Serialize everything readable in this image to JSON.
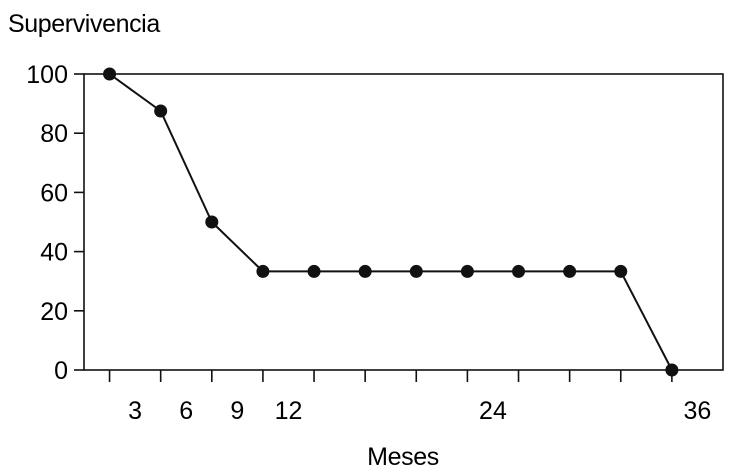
{
  "chart_data": {
    "type": "line",
    "title": "",
    "ylabel": "Supervivencia",
    "xlabel": "Meses",
    "ylim": [
      0,
      100
    ],
    "xlim": [
      0,
      37.5
    ],
    "y_ticks": [
      0,
      20,
      40,
      60,
      80,
      100
    ],
    "x_minor_ticks": [
      1.5,
      4.5,
      7.5,
      10.5,
      13.5,
      16.5,
      19.5,
      22.5,
      25.5,
      28.5,
      31.5,
      34.5
    ],
    "x_tick_labels": [
      {
        "value": 3,
        "label": "3"
      },
      {
        "value": 6,
        "label": "6"
      },
      {
        "value": 9,
        "label": "9"
      },
      {
        "value": 12,
        "label": "12"
      },
      {
        "value": 24,
        "label": "24"
      },
      {
        "value": 36,
        "label": "36"
      }
    ],
    "grid": false,
    "series": [
      {
        "color": "#111111",
        "points": [
          {
            "x": 1.5,
            "y": 100
          },
          {
            "x": 4.5,
            "y": 87.5
          },
          {
            "x": 7.5,
            "y": 50
          },
          {
            "x": 10.5,
            "y": 33.3
          },
          {
            "x": 13.5,
            "y": 33.3
          },
          {
            "x": 16.5,
            "y": 33.3
          },
          {
            "x": 19.5,
            "y": 33.3
          },
          {
            "x": 22.5,
            "y": 33.3
          },
          {
            "x": 25.5,
            "y": 33.3
          },
          {
            "x": 28.5,
            "y": 33.3
          },
          {
            "x": 31.5,
            "y": 33.3
          },
          {
            "x": 34.5,
            "y": 0
          }
        ]
      }
    ]
  }
}
